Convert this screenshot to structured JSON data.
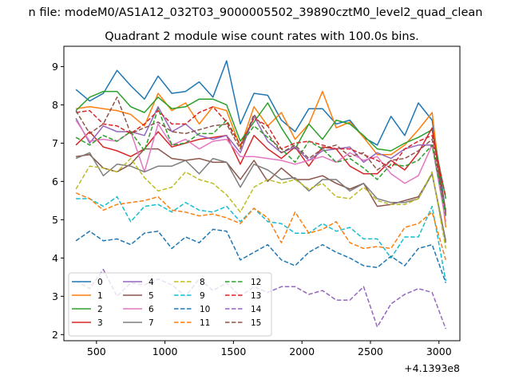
{
  "suptitle": "n file: modeM0/AS1A12_032T03_9000005502_39890cztM0_level2_quad_clean",
  "chart_data": {
    "type": "line",
    "title": "Quadrant 2 module wise count rates with 100.0s bins.",
    "xlabel": "",
    "ylabel": "",
    "x_offset_label": "+4.1393e8",
    "xlim": [
      262,
      3153
    ],
    "ylim": [
      1.84,
      9.53
    ],
    "xticks": [
      500,
      1000,
      1500,
      2000,
      2500,
      3000
    ],
    "yticks": [
      2,
      3,
      4,
      5,
      6,
      7,
      8,
      9
    ],
    "grid": false,
    "legend_position": "lower-left",
    "legend_columns": 4,
    "x": [
      350,
      450,
      550,
      650,
      750,
      850,
      950,
      1050,
      1150,
      1250,
      1350,
      1450,
      1550,
      1650,
      1750,
      1850,
      1950,
      2050,
      2150,
      2250,
      2350,
      2450,
      2550,
      2650,
      2750,
      2850,
      2950,
      3050
    ],
    "series": [
      {
        "name": "0",
        "color": "#1f77b4",
        "dash": "solid",
        "values": [
          8.4,
          8.1,
          8.3,
          8.9,
          8.5,
          8.15,
          8.75,
          8.3,
          8.35,
          8.6,
          8.2,
          9.15,
          7.5,
          8.3,
          8.25,
          7.6,
          7.3,
          7.9,
          7.9,
          7.5,
          7.6,
          7.15,
          6.95,
          7.7,
          7.2,
          8.05,
          7.6,
          5.2
        ]
      },
      {
        "name": "1",
        "color": "#ff7f0e",
        "dash": "solid",
        "values": [
          7.9,
          7.95,
          7.9,
          7.85,
          7.75,
          7.45,
          8.3,
          7.85,
          8.05,
          7.5,
          7.95,
          7.85,
          6.9,
          7.95,
          7.45,
          7.8,
          7.1,
          7.5,
          8.35,
          7.4,
          7.55,
          7.15,
          6.7,
          6.7,
          6.95,
          7.35,
          7.8,
          4.8
        ]
      },
      {
        "name": "2",
        "color": "#2ca02c",
        "dash": "solid",
        "values": [
          7.85,
          8.2,
          8.35,
          8.35,
          7.95,
          7.8,
          8.2,
          7.9,
          7.95,
          8.15,
          8.15,
          8.0,
          7.05,
          7.55,
          8.05,
          7.4,
          6.85,
          7.5,
          7.1,
          7.6,
          7.5,
          7.2,
          6.85,
          6.8,
          7.0,
          7.15,
          7.35,
          5.55
        ]
      },
      {
        "name": "3",
        "color": "#d62728",
        "dash": "solid",
        "values": [
          6.95,
          7.3,
          6.9,
          6.8,
          6.65,
          6.85,
          7.3,
          6.9,
          7.0,
          7.1,
          7.15,
          7.2,
          6.45,
          7.2,
          6.85,
          6.6,
          6.9,
          6.4,
          6.9,
          6.85,
          6.4,
          6.2,
          6.2,
          6.55,
          6.3,
          6.75,
          7.4,
          5.15
        ]
      },
      {
        "name": "4",
        "color": "#9467bd",
        "dash": "solid",
        "values": [
          7.65,
          7.0,
          7.45,
          7.3,
          7.3,
          7.2,
          7.95,
          7.3,
          7.5,
          7.2,
          7.1,
          7.2,
          6.75,
          7.7,
          7.05,
          6.75,
          6.9,
          6.55,
          6.8,
          6.85,
          6.9,
          6.5,
          6.75,
          6.6,
          6.85,
          6.95,
          6.95,
          5.2
        ]
      },
      {
        "name": "5",
        "color": "#8c564b",
        "dash": "solid",
        "values": [
          6.65,
          6.7,
          6.35,
          6.25,
          6.45,
          6.85,
          6.85,
          6.6,
          6.55,
          6.6,
          6.5,
          6.5,
          6.05,
          6.55,
          6.0,
          6.35,
          6.05,
          6.05,
          6.15,
          5.95,
          5.8,
          5.95,
          5.35,
          5.4,
          5.5,
          5.6,
          6.2,
          4.45
        ]
      },
      {
        "name": "6",
        "color": "#e377c2",
        "dash": "solid",
        "values": [
          7.6,
          7.05,
          7.1,
          7.05,
          7.3,
          6.25,
          7.5,
          6.95,
          7.1,
          6.85,
          7.05,
          7.1,
          6.65,
          6.65,
          6.6,
          6.55,
          6.45,
          6.55,
          6.65,
          6.5,
          6.75,
          6.55,
          6.65,
          6.2,
          5.95,
          6.15,
          6.95,
          4.95
        ]
      },
      {
        "name": "7",
        "color": "#7f7f7f",
        "dash": "solid",
        "values": [
          6.6,
          6.75,
          6.15,
          6.45,
          6.4,
          6.25,
          6.4,
          6.4,
          6.55,
          6.2,
          6.6,
          6.5,
          5.85,
          6.45,
          6.3,
          6.05,
          6.1,
          5.75,
          6.05,
          6.05,
          5.75,
          5.95,
          5.55,
          5.45,
          5.45,
          5.55,
          6.2,
          4.4
        ]
      },
      {
        "name": "8",
        "color": "#bcbd22",
        "dash": "dashed",
        "values": [
          5.8,
          6.4,
          6.35,
          6.25,
          6.6,
          6.1,
          5.75,
          5.85,
          6.25,
          6.05,
          5.95,
          5.65,
          5.2,
          5.85,
          6.05,
          5.95,
          6.05,
          5.8,
          5.95,
          5.6,
          5.55,
          5.85,
          5.5,
          5.4,
          5.4,
          5.55,
          6.25,
          4.25
        ]
      },
      {
        "name": "9",
        "color": "#17becf",
        "dash": "dashed",
        "values": [
          5.55,
          5.55,
          5.35,
          5.6,
          4.95,
          5.35,
          5.4,
          5.2,
          5.45,
          5.25,
          5.2,
          5.35,
          4.95,
          5.3,
          4.95,
          4.9,
          4.65,
          4.65,
          4.9,
          4.7,
          4.8,
          4.5,
          4.5,
          4.0,
          4.55,
          4.55,
          5.35,
          3.4
        ]
      },
      {
        "name": "10",
        "color": "#1f77b4",
        "dash": "dashed",
        "values": [
          4.45,
          4.7,
          4.45,
          4.5,
          4.35,
          4.65,
          4.7,
          4.25,
          4.55,
          4.4,
          4.75,
          4.7,
          3.95,
          4.15,
          4.35,
          3.95,
          3.8,
          4.15,
          4.35,
          4.15,
          4.0,
          3.8,
          3.75,
          4.05,
          3.8,
          4.25,
          4.35,
          3.35
        ]
      },
      {
        "name": "11",
        "color": "#ff7f0e",
        "dash": "dashed",
        "values": [
          5.7,
          5.55,
          5.25,
          5.4,
          5.45,
          5.5,
          5.6,
          5.25,
          5.2,
          5.1,
          5.15,
          5.05,
          4.9,
          5.3,
          5.05,
          4.4,
          5.2,
          4.65,
          4.75,
          4.95,
          4.4,
          4.25,
          4.3,
          4.25,
          4.8,
          4.9,
          5.2,
          3.95
        ]
      },
      {
        "name": "12",
        "color": "#2ca02c",
        "dash": "dashed",
        "values": [
          7.15,
          6.95,
          7.2,
          7.05,
          7.3,
          6.8,
          7.9,
          6.95,
          7.0,
          7.25,
          7.25,
          7.6,
          6.95,
          7.45,
          7.15,
          6.85,
          6.5,
          7.05,
          6.85,
          6.5,
          6.6,
          6.35,
          6.05,
          6.45,
          6.4,
          6.55,
          6.95,
          5.1
        ]
      },
      {
        "name": "13",
        "color": "#d62728",
        "dash": "dashed",
        "values": [
          7.8,
          7.85,
          7.5,
          7.45,
          7.25,
          7.5,
          7.85,
          7.5,
          7.5,
          7.8,
          7.95,
          7.55,
          6.95,
          7.65,
          7.45,
          6.85,
          7.0,
          7.05,
          6.95,
          6.85,
          6.85,
          6.7,
          6.55,
          6.35,
          6.85,
          7.05,
          7.2,
          5.6
        ]
      },
      {
        "name": "14",
        "color": "#9467bd",
        "dash": "dashed",
        "values": [
          3.4,
          3.2,
          3.7,
          3.0,
          3.35,
          3.3,
          3.45,
          3.3,
          3.0,
          3.45,
          3.15,
          3.35,
          3.0,
          3.25,
          3.1,
          3.25,
          3.25,
          3.05,
          3.15,
          2.9,
          2.9,
          3.25,
          2.2,
          2.8,
          3.05,
          3.2,
          3.1,
          2.15
        ]
      },
      {
        "name": "15",
        "color": "#8c564b",
        "dash": "dashed",
        "values": [
          7.85,
          7.25,
          7.5,
          8.2,
          7.25,
          7.4,
          7.55,
          7.3,
          7.25,
          7.35,
          7.45,
          7.5,
          6.85,
          7.75,
          7.25,
          6.75,
          6.95,
          6.6,
          6.85,
          6.95,
          6.65,
          6.75,
          6.3,
          6.55,
          6.6,
          6.8,
          7.1,
          5.25
        ]
      }
    ]
  }
}
